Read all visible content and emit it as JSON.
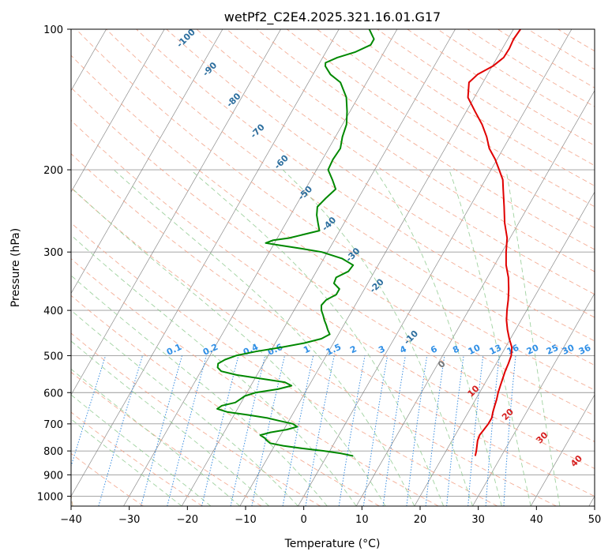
{
  "chart_data": {
    "type": "line",
    "subtype": "skew-T log-P diagram",
    "title": "wetPf2_C2E4.2025.321.16.01.G17",
    "xlabel": "Temperature (°C)",
    "ylabel": "Pressure (hPa)",
    "xlim": [
      -40,
      50
    ],
    "ylim": [
      1050,
      100
    ],
    "y_scale": "log",
    "x_ticks": [
      -40,
      -30,
      -20,
      -10,
      0,
      10,
      20,
      30,
      40,
      50
    ],
    "x_tick_labels": [
      "−40",
      "−30",
      "−20",
      "−10",
      "0",
      "10",
      "20",
      "30",
      "40",
      "50"
    ],
    "y_ticks": [
      100,
      200,
      300,
      400,
      500,
      600,
      700,
      800,
      900,
      1000
    ],
    "grid": true,
    "series": [
      {
        "role": "temperature",
        "color": "#e00000",
        "points": [
          [
            820,
            25.5
          ],
          [
            800,
            25.2
          ],
          [
            780,
            24.8
          ],
          [
            760,
            24.4
          ],
          [
            740,
            24.2
          ],
          [
            720,
            24.4
          ],
          [
            700,
            24.6
          ],
          [
            680,
            24.6
          ],
          [
            660,
            24.2
          ],
          [
            640,
            23.9
          ],
          [
            620,
            23.6
          ],
          [
            600,
            23.2
          ],
          [
            580,
            22.9
          ],
          [
            560,
            22.6
          ],
          [
            540,
            22.3
          ],
          [
            520,
            22.1
          ],
          [
            500,
            21.8
          ],
          [
            480,
            21.1
          ],
          [
            460,
            19.8
          ],
          [
            440,
            18.6
          ],
          [
            420,
            17.5
          ],
          [
            400,
            16.6
          ],
          [
            380,
            15.8
          ],
          [
            360,
            14.8
          ],
          [
            340,
            13.6
          ],
          [
            320,
            12.0
          ],
          [
            300,
            10.7
          ],
          [
            280,
            9.5
          ],
          [
            260,
            7.6
          ],
          [
            240,
            5.9
          ],
          [
            220,
            4.0
          ],
          [
            210,
            3.0
          ],
          [
            200,
            1.4
          ],
          [
            190,
            -0.3
          ],
          [
            180,
            -2.4
          ],
          [
            170,
            -4.0
          ],
          [
            160,
            -6.0
          ],
          [
            150,
            -8.5
          ],
          [
            140,
            -11.1
          ],
          [
            130,
            -12.4
          ],
          [
            125,
            -11.7
          ],
          [
            120,
            -9.9
          ],
          [
            115,
            -8.9
          ],
          [
            110,
            -8.8
          ],
          [
            105,
            -9.0
          ],
          [
            100,
            -8.8
          ]
        ]
      },
      {
        "role": "dewpoint",
        "color": "#008800",
        "points": [
          [
            820,
            4.5
          ],
          [
            810,
            2.2
          ],
          [
            800,
            -1.0
          ],
          [
            790,
            -5.0
          ],
          [
            780,
            -8.5
          ],
          [
            770,
            -11.0
          ],
          [
            760,
            -11.8
          ],
          [
            750,
            -12.5
          ],
          [
            740,
            -13.5
          ],
          [
            730,
            -12.0
          ],
          [
            720,
            -9.5
          ],
          [
            710,
            -8.0
          ],
          [
            700,
            -9.0
          ],
          [
            690,
            -11.5
          ],
          [
            680,
            -14.0
          ],
          [
            670,
            -17.5
          ],
          [
            660,
            -21.5
          ],
          [
            650,
            -23.5
          ],
          [
            640,
            -23.0
          ],
          [
            630,
            -21.0
          ],
          [
            620,
            -20.5
          ],
          [
            610,
            -20.0
          ],
          [
            600,
            -18.5
          ],
          [
            590,
            -15.0
          ],
          [
            580,
            -13.0
          ],
          [
            570,
            -14.5
          ],
          [
            560,
            -19.0
          ],
          [
            550,
            -23.5
          ],
          [
            540,
            -26.5
          ],
          [
            530,
            -27.5
          ],
          [
            520,
            -27.8
          ],
          [
            510,
            -27.0
          ],
          [
            500,
            -25.5
          ],
          [
            490,
            -22.5
          ],
          [
            480,
            -18.5
          ],
          [
            470,
            -15.0
          ],
          [
            460,
            -12.5
          ],
          [
            450,
            -11.5
          ],
          [
            440,
            -12.3
          ],
          [
            430,
            -13.0
          ],
          [
            420,
            -13.8
          ],
          [
            410,
            -14.5
          ],
          [
            400,
            -15.3
          ],
          [
            390,
            -15.8
          ],
          [
            380,
            -15.5
          ],
          [
            370,
            -14.3
          ],
          [
            360,
            -14.3
          ],
          [
            350,
            -15.8
          ],
          [
            340,
            -16.0
          ],
          [
            330,
            -14.5
          ],
          [
            320,
            -14.3
          ],
          [
            310,
            -16.8
          ],
          [
            300,
            -21.0
          ],
          [
            295,
            -24.8
          ],
          [
            290,
            -29.0
          ],
          [
            287,
            -31.5
          ],
          [
            283,
            -30.5
          ],
          [
            280,
            -28.0
          ],
          [
            270,
            -23.5
          ],
          [
            260,
            -24.5
          ],
          [
            250,
            -25.5
          ],
          [
            240,
            -26.2
          ],
          [
            230,
            -25.6
          ],
          [
            220,
            -24.8
          ],
          [
            210,
            -26.3
          ],
          [
            200,
            -28.0
          ],
          [
            190,
            -28.2
          ],
          [
            180,
            -28.0
          ],
          [
            170,
            -28.8
          ],
          [
            160,
            -29.3
          ],
          [
            150,
            -30.5
          ],
          [
            140,
            -32.0
          ],
          [
            130,
            -34.5
          ],
          [
            125,
            -37.0
          ],
          [
            120,
            -38.7
          ],
          [
            118,
            -39.0
          ],
          [
            115,
            -37.5
          ],
          [
            112,
            -35.0
          ],
          [
            108,
            -33.0
          ],
          [
            105,
            -33.0
          ],
          [
            100,
            -34.8
          ]
        ]
      }
    ],
    "dry_adiabat_labels": [
      "-100",
      "-90",
      "-80",
      "-70",
      "-60",
      "-50",
      "-40",
      "-30",
      "-20",
      "-10",
      "0",
      "10",
      "20",
      "30",
      "40"
    ],
    "mixing_ratio_labels": [
      "0.1",
      "0.2",
      "0.4",
      "0.6",
      "1",
      "1.5",
      "2",
      "3",
      "4",
      "6",
      "8",
      "10",
      "13",
      "16",
      "20",
      "25",
      "30",
      "36"
    ],
    "colors": {
      "isotherm": "#777777",
      "isobar": "#999999",
      "dry_adiabat": "#f2a085",
      "moist_adiabat": "#8fca8f",
      "mixing_ratio": "#3a8ee0",
      "label_dark": "#2c6e9e",
      "label_light": "#2f8fe6",
      "label_red": "#d62020",
      "label_gray": "#777777",
      "curve_tan": "#d8c0a0"
    }
  }
}
